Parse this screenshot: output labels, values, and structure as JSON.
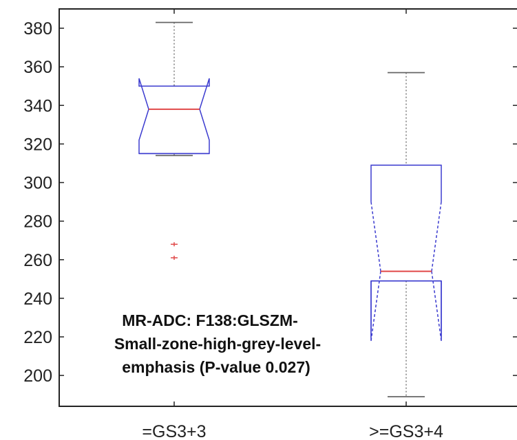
{
  "chart_data": {
    "type": "boxplot",
    "notched": true,
    "title": "",
    "xlabel": "",
    "ylabel": "",
    "categories": [
      "=GS3+3",
      ">=GS3+4"
    ],
    "ylim": [
      184,
      390
    ],
    "yticks": [
      200,
      220,
      240,
      260,
      280,
      300,
      320,
      340,
      360,
      380
    ],
    "ytick_labels": [
      "200",
      "220",
      "240",
      "260",
      "280",
      "300",
      "320",
      "340",
      "360",
      "380"
    ],
    "boxes": [
      {
        "category": "=GS3+3",
        "whisker_low": 314,
        "q1": 315,
        "median": 338,
        "q3": 350,
        "whisker_high": 383,
        "notch_low": 322,
        "notch_high": 354,
        "outliers": [
          268,
          261
        ]
      },
      {
        "category": ">=GS3+4",
        "whisker_low": 189,
        "q1": 249,
        "median": 254,
        "q3": 309,
        "whisker_high": 357,
        "notch_low": 218,
        "notch_high": 290,
        "outliers": []
      }
    ],
    "annotation_lines": [
      "MR-ADC: F138:GLSZM-",
      "Small-zone-high-grey-level-",
      "emphasis (P-value  0.027)"
    ],
    "colors": {
      "box": "#3b3bcf",
      "median": "#e04848",
      "whisker": "#666666",
      "outlier": "#e04848",
      "axes": "#222222"
    }
  }
}
